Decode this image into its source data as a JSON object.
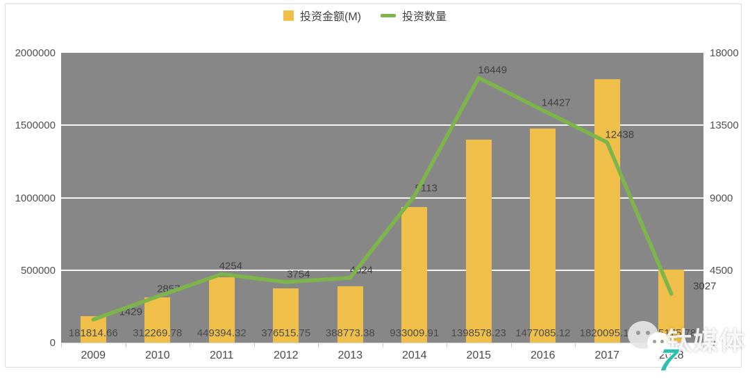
{
  "legend": {
    "items": [
      {
        "label": "投资金额(M)",
        "swatch": "square",
        "color": "#F0BF49"
      },
      {
        "label": "投资数量",
        "swatch": "dash",
        "color": "#7DB54A"
      }
    ]
  },
  "chart_data": {
    "type": "bar",
    "subtype": "bar+line combo, dual axis",
    "categories": [
      "2009",
      "2010",
      "2011",
      "2012",
      "2013",
      "2014",
      "2015",
      "2016",
      "2017",
      "2018"
    ],
    "series": [
      {
        "name": "投资金额(M)",
        "type": "bar",
        "axis": "left",
        "color": "#F0BF49",
        "values": [
          181814.66,
          312269.78,
          449394.32,
          376515.75,
          388773.38,
          933009.91,
          1398578.23,
          1477085.12,
          1820095.17,
          505175.78
        ],
        "labels": [
          "181814.66",
          "312269.78",
          "449394.32",
          "376515.75",
          "388773.38",
          "933009.91",
          "1398578.23",
          "1477085.12",
          "1820095.17",
          "505175.78"
        ]
      },
      {
        "name": "投资数量",
        "type": "line",
        "axis": "right",
        "color": "#7DB54A",
        "values": [
          1429,
          2857,
          4254,
          3754,
          4024,
          9113,
          16449,
          14427,
          12438,
          3027
        ],
        "labels": [
          "1429",
          "2857",
          "4254",
          "3754",
          "4024",
          "9113",
          "16449",
          "14427",
          "12438",
          "3027"
        ]
      }
    ],
    "left_axis": {
      "ticks": [
        "2000000",
        "1500000",
        "1000000",
        "500000",
        "0"
      ],
      "min": 0,
      "max": 2000000
    },
    "right_axis": {
      "ticks": [
        "18000",
        "13500",
        "9000",
        "4500",
        "0"
      ],
      "min": 0,
      "max": 18000
    },
    "gridline_values_left": [
      1500000,
      1000000,
      500000
    ],
    "plot_background": "#878787",
    "gridline_color": "#FFFFFF",
    "legend_position": "top-center",
    "title": "",
    "xlabel": "",
    "ylabel_left": "",
    "ylabel_right": ""
  },
  "watermark": {
    "brand": "钛媒体",
    "icon": "wechat-bubbles-icon",
    "logo_glyph": "7",
    "logo_color": "#2EC0AE"
  }
}
